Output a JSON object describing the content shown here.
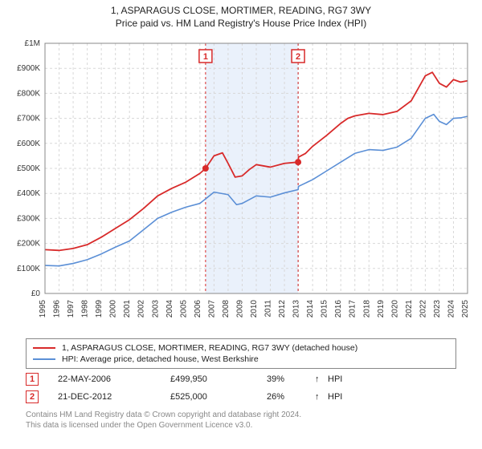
{
  "title_line1": "1, ASPARAGUS CLOSE, MORTIMER, READING, RG7 3WY",
  "title_line2": "Price paid vs. HM Land Registry's House Price Index (HPI)",
  "chart": {
    "type": "line",
    "background_color": "#ffffff",
    "plot_border_color": "#888888",
    "grid_color": "#d8d8d8",
    "grid_dash": "3,3",
    "shaded_region_color": "#eaf1fb",
    "shaded_region": {
      "from_x": 2006.4,
      "to_x": 2012.97
    },
    "y_axis": {
      "min": 0,
      "max": 1000000,
      "ticks": [
        0,
        100000,
        200000,
        300000,
        400000,
        500000,
        600000,
        700000,
        800000,
        900000,
        1000000
      ],
      "labels": [
        "£0",
        "£100K",
        "£200K",
        "£300K",
        "£400K",
        "£500K",
        "£600K",
        "£700K",
        "£800K",
        "£900K",
        "£1M"
      ],
      "tick_fontsize": 10,
      "tick_color": "#333333"
    },
    "x_axis": {
      "min": 1995,
      "max": 2025,
      "ticks": [
        1995,
        1996,
        1997,
        1998,
        1999,
        2000,
        2001,
        2002,
        2003,
        2004,
        2005,
        2006,
        2007,
        2008,
        2009,
        2010,
        2011,
        2012,
        2013,
        2014,
        2015,
        2016,
        2017,
        2018,
        2019,
        2020,
        2021,
        2022,
        2023,
        2024,
        2025
      ],
      "labels": [
        "1995",
        "1996",
        "1997",
        "1998",
        "1999",
        "2000",
        "2001",
        "2002",
        "2003",
        "2004",
        "2005",
        "2006",
        "2007",
        "2008",
        "2009",
        "2010",
        "2011",
        "2012",
        "2013",
        "2014",
        "2015",
        "2016",
        "2017",
        "2018",
        "2019",
        "2020",
        "2021",
        "2022",
        "2023",
        "2024",
        "2025"
      ],
      "tick_fontsize": 10,
      "tick_color": "#333333",
      "label_rotation": -90
    },
    "series": [
      {
        "name": "property",
        "color": "#d82a2a",
        "width": 1.8,
        "data": [
          [
            1995,
            175000
          ],
          [
            1996,
            172000
          ],
          [
            1997,
            180000
          ],
          [
            1998,
            195000
          ],
          [
            1999,
            225000
          ],
          [
            2000,
            260000
          ],
          [
            2001,
            295000
          ],
          [
            2002,
            340000
          ],
          [
            2003,
            390000
          ],
          [
            2004,
            420000
          ],
          [
            2005,
            445000
          ],
          [
            2006,
            480000
          ],
          [
            2006.4,
            499950
          ],
          [
            2007,
            550000
          ],
          [
            2007.6,
            562000
          ],
          [
            2008,
            520000
          ],
          [
            2008.5,
            465000
          ],
          [
            2009,
            470000
          ],
          [
            2009.5,
            495000
          ],
          [
            2010,
            515000
          ],
          [
            2011,
            505000
          ],
          [
            2012,
            520000
          ],
          [
            2012.97,
            525000
          ],
          [
            2013,
            545000
          ],
          [
            2013.5,
            560000
          ],
          [
            2014,
            588000
          ],
          [
            2015,
            632000
          ],
          [
            2016,
            680000
          ],
          [
            2016.5,
            700000
          ],
          [
            2017,
            710000
          ],
          [
            2018,
            720000
          ],
          [
            2019,
            715000
          ],
          [
            2020,
            728000
          ],
          [
            2021,
            770000
          ],
          [
            2022,
            870000
          ],
          [
            2022.5,
            884000
          ],
          [
            2023,
            840000
          ],
          [
            2023.5,
            825000
          ],
          [
            2024,
            855000
          ],
          [
            2024.5,
            845000
          ],
          [
            2025,
            850000
          ]
        ]
      },
      {
        "name": "hpi",
        "color": "#5b8fd6",
        "width": 1.6,
        "data": [
          [
            1995,
            112000
          ],
          [
            1996,
            110000
          ],
          [
            1997,
            120000
          ],
          [
            1998,
            135000
          ],
          [
            1999,
            158000
          ],
          [
            2000,
            185000
          ],
          [
            2001,
            210000
          ],
          [
            2002,
            255000
          ],
          [
            2003,
            300000
          ],
          [
            2004,
            325000
          ],
          [
            2005,
            345000
          ],
          [
            2006,
            360000
          ],
          [
            2007,
            405000
          ],
          [
            2008,
            395000
          ],
          [
            2008.6,
            355000
          ],
          [
            2009,
            360000
          ],
          [
            2010,
            390000
          ],
          [
            2011,
            385000
          ],
          [
            2012,
            402000
          ],
          [
            2012.97,
            415000
          ],
          [
            2013,
            428000
          ],
          [
            2014,
            455000
          ],
          [
            2015,
            490000
          ],
          [
            2016,
            525000
          ],
          [
            2017,
            560000
          ],
          [
            2018,
            575000
          ],
          [
            2019,
            572000
          ],
          [
            2020,
            585000
          ],
          [
            2021,
            620000
          ],
          [
            2022,
            700000
          ],
          [
            2022.6,
            716000
          ],
          [
            2023,
            688000
          ],
          [
            2023.5,
            675000
          ],
          [
            2024,
            700000
          ],
          [
            2024.5,
            702000
          ],
          [
            2025,
            708000
          ]
        ]
      }
    ],
    "sale_points": {
      "color": "#d82a2a",
      "radius": 4,
      "points": [
        {
          "x": 2006.4,
          "y": 499950
        },
        {
          "x": 2012.97,
          "y": 525000
        }
      ]
    },
    "marker_lines": {
      "color": "#d82a2a",
      "dash": "3,3",
      "width": 1,
      "positions_x": [
        2006.4,
        2012.97
      ]
    },
    "marker_badges": [
      {
        "label": "1",
        "x": 2006.4,
        "border_color": "#d82a2a",
        "text_color": "#d82a2a",
        "bg": "#ffffff"
      },
      {
        "label": "2",
        "x": 2012.97,
        "border_color": "#d82a2a",
        "text_color": "#d82a2a",
        "bg": "#ffffff"
      }
    ]
  },
  "legend": {
    "items": [
      {
        "color": "#d82a2a",
        "label": "1, ASPARAGUS CLOSE, MORTIMER, READING, RG7 3WY (detached house)"
      },
      {
        "color": "#5b8fd6",
        "label": "HPI: Average price, detached house, West Berkshire"
      }
    ]
  },
  "marker_table": [
    {
      "num": "1",
      "border_color": "#d82a2a",
      "text_color": "#d82a2a",
      "date": "22-MAY-2006",
      "price": "£499,950",
      "pct": "39%",
      "arrow": "↑",
      "ref": "HPI"
    },
    {
      "num": "2",
      "border_color": "#d82a2a",
      "text_color": "#d82a2a",
      "date": "21-DEC-2012",
      "price": "£525,000",
      "pct": "26%",
      "arrow": "↑",
      "ref": "HPI"
    }
  ],
  "footer_line1": "Contains HM Land Registry data © Crown copyright and database right 2024.",
  "footer_line2": "This data is licensed under the Open Government Licence v3.0."
}
